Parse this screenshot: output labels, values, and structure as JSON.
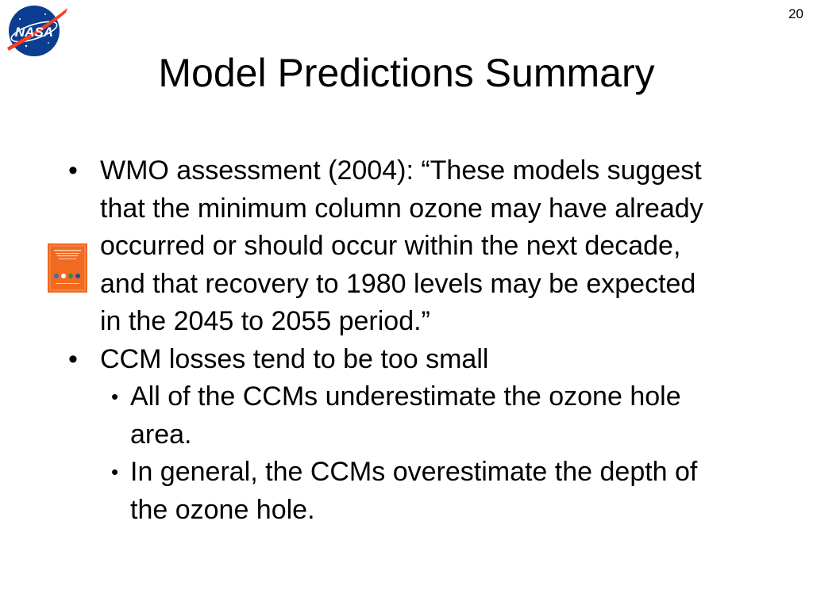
{
  "slide": {
    "page_number": "20",
    "title": "Model Predictions Summary",
    "logo": {
      "icon": "nasa-logo-icon",
      "text": "NASA"
    },
    "bullet_marker": "•",
    "bullets": [
      {
        "text": "WMO assessment (2004): “These models suggest that the minimum column ozone may have already occurred or should occur within the next decade, and that recovery to 1980 levels may be expected in the 2045 to 2055 period.”"
      },
      {
        "text": "CCM losses tend to be too small"
      }
    ],
    "sub_bullets": [
      {
        "text": "All of the CCMs underestimate the ozone hole area."
      },
      {
        "text": "In general, the CCMs overestimate the depth of the ozone hole."
      }
    ],
    "thumbnail": {
      "icon": "wmo-report-cover-icon"
    }
  },
  "colors": {
    "nasa_blue": "#0b3d91",
    "nasa_red": "#fc3d21",
    "report_orange": "#f26a21"
  }
}
